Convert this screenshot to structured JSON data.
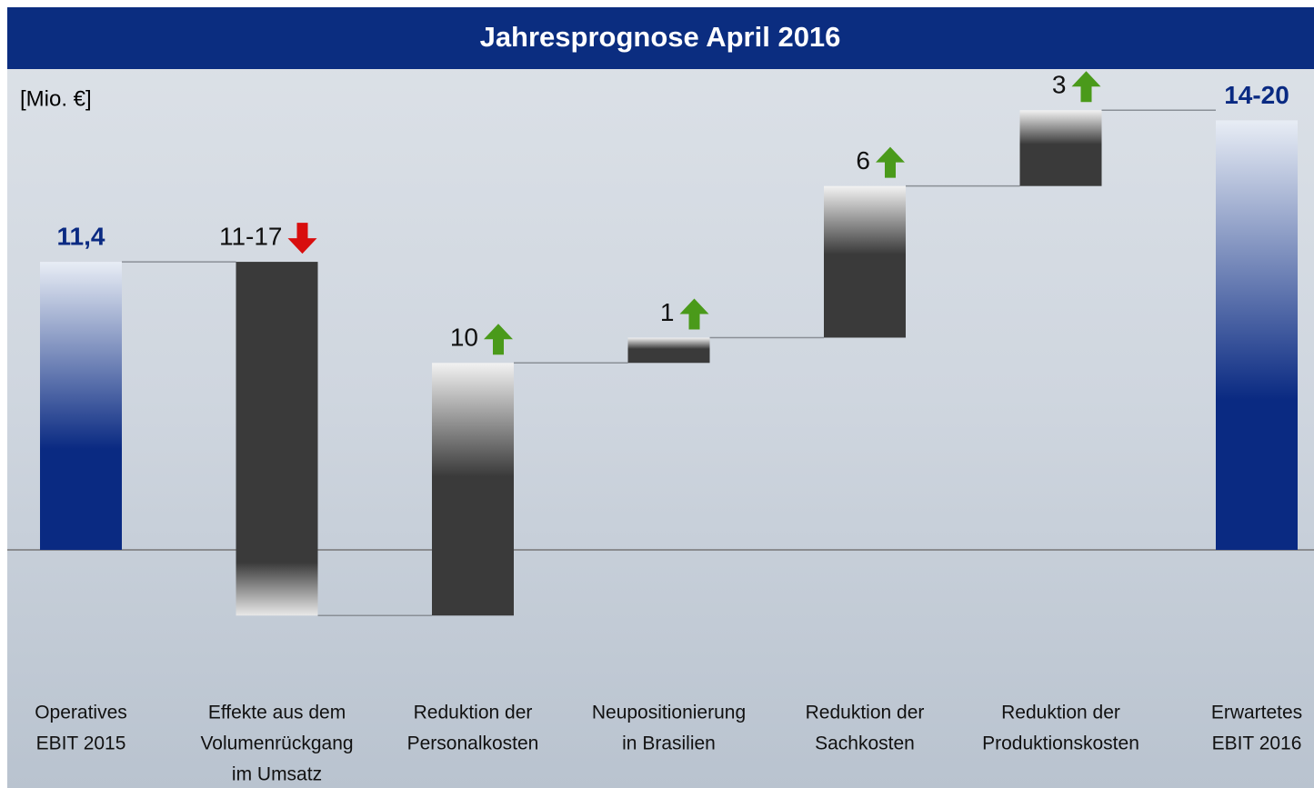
{
  "chart_data": {
    "type": "waterfall",
    "title": "Jahresprognose April 2016",
    "unit_label": "[Mio. €]",
    "categories": [
      [
        "Operatives",
        "EBIT 2015"
      ],
      [
        "Effekte aus dem",
        "Volumenrückgang",
        "im Umsatz"
      ],
      [
        "Reduktion der",
        "Personalkosten"
      ],
      [
        "Neupositionierung",
        "in Brasilien"
      ],
      [
        "Reduktion der",
        "Sachkosten"
      ],
      [
        "Reduktion der",
        "Produktionskosten"
      ],
      [
        "Erwartetes",
        "EBIT 2016"
      ]
    ],
    "values": [
      11.4,
      [
        11,
        17
      ],
      10,
      1,
      6,
      3,
      [
        14,
        20
      ]
    ],
    "value_labels": [
      "11,4",
      "11-17",
      "10",
      "1",
      "6",
      "3",
      "14-20"
    ],
    "kinds": [
      "total",
      "decrease",
      "increase",
      "increase",
      "increase",
      "increase",
      "total"
    ],
    "colors": {
      "total": "#0a2a82",
      "delta": "#3a3a3a",
      "increase_arrow": "#4a9a1a",
      "decrease_arrow": "#d80e0e"
    }
  }
}
